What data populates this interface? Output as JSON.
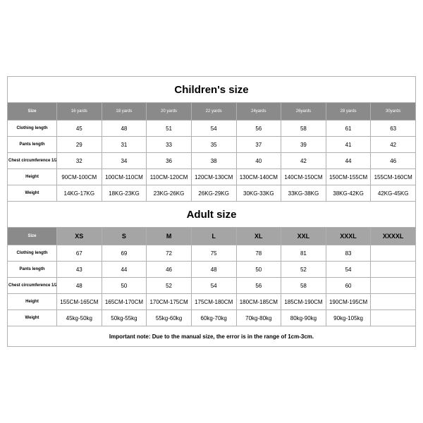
{
  "styling": {
    "background_color": "#ffffff",
    "border_color": "#b0b0b0",
    "header_bg": "#8a8a8a",
    "header_fg": "#ffffff",
    "adult_header_bg": "#a5a5a5",
    "title_fontsize": 15,
    "header_fontsize": 6,
    "adult_header_fontsize": 9,
    "data_fontsize": 8,
    "first_col_fontsize": 6,
    "note_fontsize": 8
  },
  "children": {
    "title": "Children's size",
    "columns": [
      "Size",
      "16 yards",
      "18 yards",
      "20 yards",
      "22 yards",
      "24yards",
      "26yards",
      "28 yards",
      "30yards"
    ],
    "rows": [
      {
        "label": "Clothing length",
        "cells": [
          "45",
          "48",
          "51",
          "54",
          "56",
          "58",
          "61",
          "63"
        ]
      },
      {
        "label": "Pants length",
        "cells": [
          "29",
          "31",
          "33",
          "35",
          "37",
          "39",
          "41",
          "42"
        ]
      },
      {
        "label": "Chest circumference 1/2",
        "cells": [
          "32",
          "34",
          "36",
          "38",
          "40",
          "42",
          "44",
          "46"
        ]
      },
      {
        "label": "Height",
        "cells": [
          "90CM-100CM",
          "100CM-110CM",
          "110CM-120CM",
          "120CM-130CM",
          "130CM-140CM",
          "140CM-150CM",
          "150CM-155CM",
          "155CM-160CM"
        ]
      },
      {
        "label": "Weight",
        "cells": [
          "14KG-17KG",
          "18KG-23KG",
          "23KG-26KG",
          "26KG-29KG",
          "30KG-33KG",
          "33KG-38KG",
          "38KG-42KG",
          "42KG-45KG"
        ]
      }
    ]
  },
  "adult": {
    "title": "Adult size",
    "columns": [
      "Size",
      "XS",
      "S",
      "M",
      "L",
      "XL",
      "XXL",
      "XXXL",
      "XXXXL"
    ],
    "rows": [
      {
        "label": "Clothing length",
        "cells": [
          "67",
          "69",
          "72",
          "75",
          "78",
          "81",
          "83",
          ""
        ]
      },
      {
        "label": "Pants length",
        "cells": [
          "43",
          "44",
          "46",
          "48",
          "50",
          "52",
          "54",
          ""
        ]
      },
      {
        "label": "Chest circumference 1/2",
        "cells": [
          "48",
          "50",
          "52",
          "54",
          "56",
          "58",
          "60",
          ""
        ]
      },
      {
        "label": "Height",
        "cells": [
          "155CM-165CM",
          "165CM-170CM",
          "170CM-175CM",
          "175CM-180CM",
          "180CM-185CM",
          "185CM-190CM",
          "190CM-195CM",
          ""
        ]
      },
      {
        "label": "Weight",
        "cells": [
          "45kg-50kg",
          "50kg-55kg",
          "55kg-60kg",
          "60kg-70kg",
          "70kg-80kg",
          "80kg-90kg",
          "90kg-105kg",
          ""
        ]
      }
    ]
  },
  "note": "Important note: Due to the manual size, the error is in the range of 1cm-3cm."
}
